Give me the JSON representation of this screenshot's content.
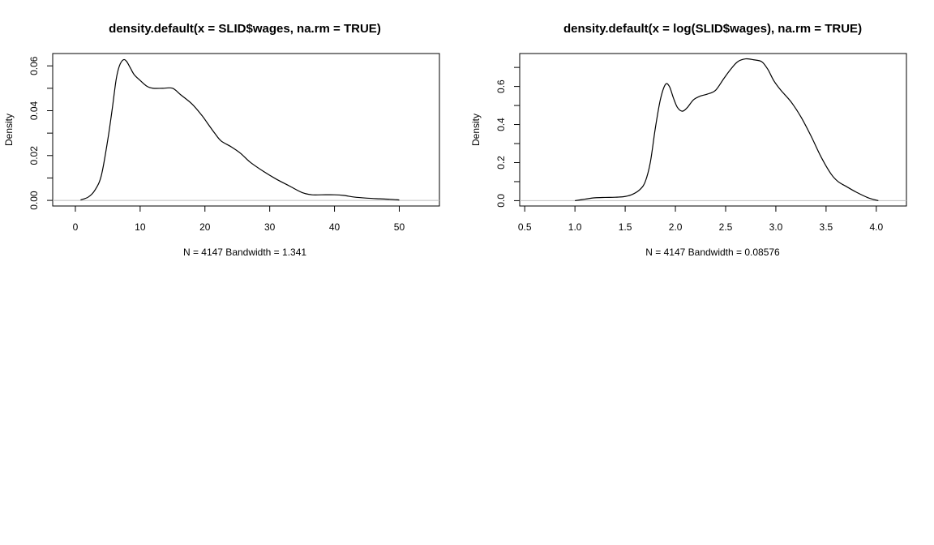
{
  "chart_data": [
    {
      "type": "line",
      "title": "density.default(x = SLID$wages, na.rm = TRUE)",
      "subtitle": "N = 4147   Bandwidth = 1.341",
      "xlabel": "",
      "ylabel": "Density",
      "xlim": [
        -3.5,
        56.2
      ],
      "ylim": [
        -0.0025,
        0.0655
      ],
      "x_ticks": [
        0,
        10,
        20,
        30,
        40,
        50
      ],
      "x_tick_labels": [
        "0",
        "10",
        "20",
        "30",
        "40",
        "50"
      ],
      "y_ticks": [
        0.0,
        0.01,
        0.02,
        0.03,
        0.04,
        0.05,
        0.06
      ],
      "y_tick_labels": [
        "0.00",
        "",
        "0.02",
        "",
        "0.04",
        "",
        "0.06"
      ],
      "baseline": 0,
      "grid": false,
      "colors": {
        "line": "#000000",
        "baseline": "#bebebe"
      },
      "series": [
        {
          "x": [
            0.8,
            2.0,
            3.0,
            4.0,
            5.0,
            5.7,
            6.3,
            6.8,
            7.4,
            7.9,
            8.5,
            9.1,
            10.0,
            11.0,
            12.0,
            13.5,
            15.0,
            16.3,
            18.0,
            19.5,
            20.5,
            21.5,
            22.5,
            24.0,
            25.5,
            27.0,
            29.0,
            31.0,
            33.0,
            35.0,
            36.5,
            38.0,
            40.0,
            41.5,
            43.0,
            45.0,
            47.0,
            48.5,
            50.0
          ],
          "y": [
            0.0002,
            0.0015,
            0.0045,
            0.011,
            0.027,
            0.041,
            0.054,
            0.06,
            0.0627,
            0.062,
            0.059,
            0.056,
            0.0535,
            0.051,
            0.05,
            0.05,
            0.05,
            0.047,
            0.043,
            0.038,
            0.034,
            0.03,
            0.0265,
            0.024,
            0.021,
            0.017,
            0.013,
            0.0095,
            0.0065,
            0.0035,
            0.0025,
            0.0025,
            0.0025,
            0.0022,
            0.0015,
            0.001,
            0.0007,
            0.0005,
            0.0002
          ]
        }
      ]
    },
    {
      "type": "line",
      "title": "density.default(x = log(SLID$wages), na.rm = TRUE)",
      "subtitle": "N = 4147   Bandwidth = 0.08576",
      "xlabel": "",
      "ylabel": "Density",
      "xlim": [
        0.45,
        4.3
      ],
      "ylim": [
        -0.028,
        0.773
      ],
      "x_ticks": [
        0.5,
        1.0,
        1.5,
        2.0,
        2.5,
        3.0,
        3.5,
        4.0
      ],
      "x_tick_labels": [
        "0.5",
        "1.0",
        "1.5",
        "2.0",
        "2.5",
        "3.0",
        "3.5",
        "4.0"
      ],
      "y_ticks": [
        0.0,
        0.1,
        0.2,
        0.3,
        0.4,
        0.5,
        0.6,
        0.7
      ],
      "y_tick_labels": [
        "0.0",
        "",
        "0.2",
        "",
        "0.4",
        "",
        "0.6",
        ""
      ],
      "baseline": 0,
      "grid": false,
      "colors": {
        "line": "#000000",
        "baseline": "#bebebe"
      },
      "series": [
        {
          "x": [
            1.0,
            1.1,
            1.2,
            1.3,
            1.4,
            1.5,
            1.58,
            1.65,
            1.7,
            1.75,
            1.8,
            1.85,
            1.9,
            1.94,
            1.98,
            2.02,
            2.07,
            2.12,
            2.18,
            2.25,
            2.32,
            2.4,
            2.48,
            2.55,
            2.62,
            2.7,
            2.78,
            2.86,
            2.92,
            2.98,
            3.05,
            3.15,
            3.25,
            3.35,
            3.45,
            3.55,
            3.62,
            3.7,
            3.8,
            3.92,
            4.02
          ],
          "y": [
            0.0,
            0.008,
            0.015,
            0.017,
            0.018,
            0.022,
            0.035,
            0.06,
            0.1,
            0.2,
            0.38,
            0.53,
            0.61,
            0.6,
            0.54,
            0.49,
            0.47,
            0.49,
            0.53,
            0.55,
            0.56,
            0.58,
            0.64,
            0.69,
            0.73,
            0.745,
            0.74,
            0.73,
            0.69,
            0.63,
            0.58,
            0.52,
            0.44,
            0.34,
            0.23,
            0.14,
            0.1,
            0.075,
            0.045,
            0.015,
            0.0
          ]
        }
      ]
    }
  ]
}
